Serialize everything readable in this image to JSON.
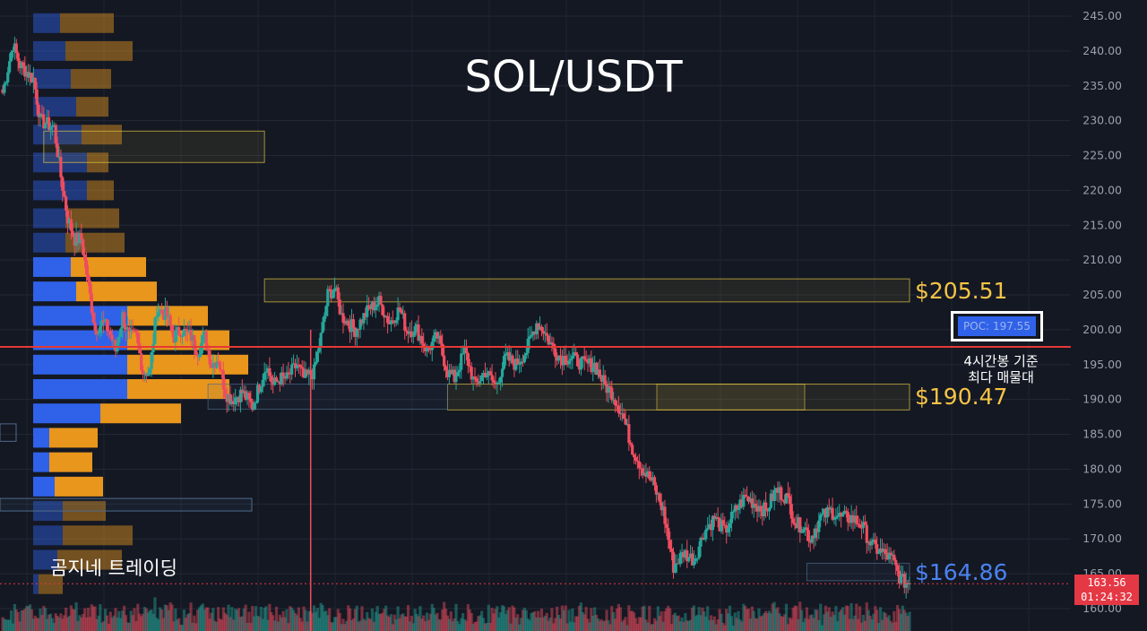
{
  "title": "SOL/USDT",
  "watermark": "곰지네 트레이딩",
  "levels": [
    {
      "label": "$205.51",
      "color": "#f6c445"
    },
    {
      "label": "$190.47",
      "color": "#f6c445"
    },
    {
      "label": "$164.86",
      "color": "#4b82f0"
    }
  ],
  "poc": {
    "label": "POC: 197.55",
    "note_line1": "4시간봉 기준",
    "note_line2": "최다 매물대"
  },
  "current_price": {
    "price": "163.56",
    "countdown": "01:24:32"
  },
  "colors": {
    "background": "#141823",
    "up": "#26a69a",
    "down": "#ef4d5f",
    "volume_buy": "#2f62e8",
    "volume_sell": "#e8961c",
    "poc_line": "#e53935",
    "zone": "#e0c341"
  },
  "chart_data": {
    "type": "candlestick",
    "title": "SOL/USDT",
    "y_axis": {
      "ticks": [
        "245.00",
        "240.00",
        "235.00",
        "230.00",
        "225.00",
        "220.00",
        "215.00",
        "210.00",
        "205.00",
        "200.00",
        "195.00",
        "190.00",
        "185.00",
        "180.00",
        "175.00",
        "170.00",
        "165.00",
        "160.00"
      ],
      "range": [
        158.5,
        246.5
      ],
      "position": "right"
    },
    "grid": true,
    "close_path": [
      [
        0,
        234
      ],
      [
        6,
        241
      ],
      [
        10,
        238
      ],
      [
        18,
        236
      ],
      [
        22,
        230
      ],
      [
        30,
        229
      ],
      [
        34,
        222
      ],
      [
        38,
        216
      ],
      [
        42,
        213
      ],
      [
        46,
        213
      ],
      [
        54,
        200
      ],
      [
        58,
        201
      ],
      [
        62,
        200
      ],
      [
        66,
        197
      ],
      [
        70,
        202
      ],
      [
        74,
        199
      ],
      [
        78,
        199
      ],
      [
        82,
        194
      ],
      [
        86,
        194
      ],
      [
        90,
        203
      ],
      [
        96,
        202
      ],
      [
        100,
        199
      ],
      [
        104,
        200
      ],
      [
        110,
        199
      ],
      [
        114,
        197
      ],
      [
        118,
        199
      ],
      [
        122,
        195
      ],
      [
        126,
        196
      ],
      [
        130,
        191
      ],
      [
        134,
        190
      ],
      [
        140,
        191
      ],
      [
        146,
        189
      ],
      [
        150,
        192
      ],
      [
        154,
        195
      ],
      [
        158,
        192
      ],
      [
        162,
        193
      ],
      [
        166,
        193
      ],
      [
        172,
        195
      ],
      [
        176,
        193
      ],
      [
        182,
        194
      ],
      [
        186,
        199
      ],
      [
        190,
        205
      ],
      [
        194,
        206
      ],
      [
        198,
        202
      ],
      [
        206,
        200
      ],
      [
        214,
        203
      ],
      [
        220,
        204
      ],
      [
        226,
        201
      ],
      [
        232,
        203
      ],
      [
        236,
        200
      ],
      [
        242,
        200
      ],
      [
        248,
        197
      ],
      [
        254,
        199
      ],
      [
        260,
        194
      ],
      [
        264,
        193
      ],
      [
        270,
        197
      ],
      [
        276,
        192
      ],
      [
        282,
        194
      ],
      [
        288,
        192
      ],
      [
        294,
        196
      ],
      [
        300,
        195
      ],
      [
        306,
        197
      ],
      [
        312,
        201
      ],
      [
        316,
        200
      ],
      [
        320,
        198
      ],
      [
        326,
        196
      ],
      [
        332,
        196
      ],
      [
        340,
        195
      ],
      [
        346,
        195
      ],
      [
        352,
        192
      ],
      [
        356,
        191
      ],
      [
        362,
        188
      ],
      [
        368,
        183
      ],
      [
        374,
        180
      ],
      [
        380,
        178
      ],
      [
        386,
        174
      ],
      [
        392,
        166
      ],
      [
        398,
        168
      ],
      [
        404,
        167
      ],
      [
        410,
        171
      ],
      [
        416,
        173
      ],
      [
        422,
        171
      ],
      [
        428,
        174
      ],
      [
        434,
        176
      ],
      [
        440,
        175
      ],
      [
        446,
        174
      ],
      [
        452,
        177
      ],
      [
        458,
        176
      ],
      [
        464,
        172
      ],
      [
        468,
        172
      ],
      [
        472,
        170
      ],
      [
        478,
        173
      ],
      [
        484,
        174
      ],
      [
        490,
        173
      ],
      [
        496,
        173
      ],
      [
        502,
        172
      ],
      [
        508,
        169
      ],
      [
        514,
        168
      ],
      [
        520,
        167
      ],
      [
        525,
        164
      ],
      [
        530,
        163.6
      ]
    ],
    "candle_count": 531,
    "volume_profile": {
      "price_bins": [
        244,
        240,
        236,
        232,
        228,
        224,
        220,
        216,
        212.5,
        209,
        205.5,
        202,
        198.5,
        195,
        191.5,
        188,
        184.5,
        181,
        177.5,
        174,
        170.5,
        167,
        163.5
      ],
      "buy": [
        10,
        12,
        14,
        16,
        18,
        20,
        20,
        12,
        12,
        14,
        16,
        35,
        35,
        35,
        35,
        25,
        6,
        6,
        8,
        11,
        11,
        9,
        2
      ],
      "sell": [
        20,
        25,
        15,
        12,
        15,
        8,
        10,
        20,
        22,
        28,
        30,
        30,
        38,
        45,
        38,
        30,
        18,
        16,
        18,
        16,
        26,
        24,
        9
      ]
    },
    "poc": 197.55,
    "zones": [
      {
        "from_candle": 24,
        "to_candle": 153,
        "y_from": 224,
        "y_to": 228.5,
        "color": "yellow"
      },
      {
        "from_candle": 153,
        "to_candle": 530,
        "y_from": 204,
        "y_to": 207.3,
        "color": "yellow"
      },
      {
        "from_candle": 260,
        "to_candle": 530,
        "y_from": 188.5,
        "y_to": 192.2,
        "color": "yellow"
      },
      {
        "from_candle": 120,
        "to_candle": 260,
        "y_from": 188.6,
        "y_to": 192.2,
        "color": "blue"
      },
      {
        "from_candle": 470,
        "to_candle": 530,
        "y_from": 164,
        "y_to": 166.5,
        "color": "blue"
      }
    ],
    "annotations": [
      {
        "label": "$205.51",
        "y": 205.51
      },
      {
        "label": "$190.47",
        "y": 190.47
      },
      {
        "label": "$164.86",
        "y": 164.86
      },
      {
        "label": "POC: 197.55",
        "y": 197.55
      }
    ],
    "current_price": 163.56
  }
}
